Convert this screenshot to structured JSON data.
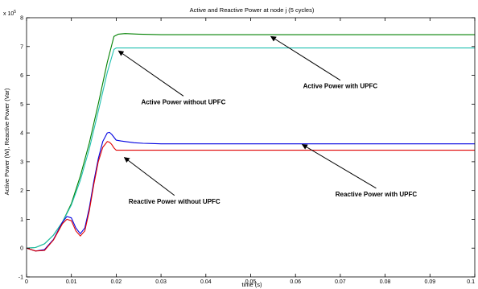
{
  "chart_data": {
    "type": "line",
    "title": "Active and Reactive Power at node j (5 cycles)",
    "xlabel": "time (s)",
    "ylabel": "Active Power (W), Reactive Power (Var)",
    "y_multiplier_label": "x 10",
    "y_multiplier_exp": "5",
    "xlim": [
      0,
      0.1
    ],
    "ylim": [
      -1,
      8
    ],
    "x_ticks": [
      0,
      0.01,
      0.02,
      0.03,
      0.04,
      0.05,
      0.06,
      0.07,
      0.08,
      0.09,
      0.1
    ],
    "x_tick_labels": [
      "0",
      "0.01",
      "0.02",
      "0.03",
      "0.04",
      "0.05",
      "0.06",
      "0.07",
      "0.08",
      "0.09",
      "0.1"
    ],
    "y_ticks": [
      -1,
      0,
      1,
      2,
      3,
      4,
      5,
      6,
      7,
      8
    ],
    "y_tick_labels": [
      "-1",
      "0",
      "1",
      "2",
      "3",
      "4",
      "5",
      "6",
      "7",
      "8"
    ],
    "grid": false,
    "series": [
      {
        "color": "#008000",
        "x": [
          0,
          0.002,
          0.004,
          0.006,
          0.008,
          0.01,
          0.012,
          0.014,
          0.016,
          0.018,
          0.0195,
          0.0205,
          0.022,
          0.025,
          0.03,
          0.04,
          0.06,
          0.08,
          0.1
        ],
        "y": [
          0,
          0.02,
          0.15,
          0.45,
          0.9,
          1.55,
          2.5,
          3.65,
          5.0,
          6.45,
          7.35,
          7.43,
          7.45,
          7.43,
          7.41,
          7.41,
          7.41,
          7.41,
          7.41
        ]
      },
      {
        "color": "#20C0B0",
        "x": [
          0,
          0.002,
          0.004,
          0.006,
          0.008,
          0.01,
          0.012,
          0.014,
          0.016,
          0.018,
          0.0195,
          0.02,
          0.03,
          0.05,
          0.07,
          0.1
        ],
        "y": [
          0,
          0.02,
          0.15,
          0.45,
          0.9,
          1.5,
          2.35,
          3.45,
          4.75,
          6.1,
          6.9,
          6.95,
          6.95,
          6.95,
          6.95,
          6.95
        ]
      },
      {
        "color": "#0000E0",
        "x": [
          0,
          0.002,
          0.004,
          0.006,
          0.008,
          0.009,
          0.01,
          0.011,
          0.012,
          0.013,
          0.014,
          0.015,
          0.016,
          0.017,
          0.018,
          0.0185,
          0.019,
          0.0195,
          0.02,
          0.021,
          0.022,
          0.024,
          0.026,
          0.028,
          0.03,
          0.04,
          0.06,
          0.08,
          0.1
        ],
        "y": [
          0,
          -0.1,
          -0.05,
          0.3,
          0.9,
          1.1,
          1.05,
          0.7,
          0.5,
          0.7,
          1.4,
          2.3,
          3.1,
          3.7,
          4.0,
          4.02,
          3.95,
          3.85,
          3.75,
          3.72,
          3.7,
          3.66,
          3.64,
          3.63,
          3.62,
          3.62,
          3.62,
          3.62,
          3.62
        ]
      },
      {
        "color": "#E00000",
        "x": [
          0,
          0.002,
          0.004,
          0.006,
          0.008,
          0.009,
          0.01,
          0.011,
          0.012,
          0.013,
          0.014,
          0.015,
          0.016,
          0.017,
          0.018,
          0.0185,
          0.019,
          0.0195,
          0.02,
          0.025,
          0.04,
          0.06,
          0.08,
          0.1
        ],
        "y": [
          0,
          -0.1,
          -0.08,
          0.28,
          0.85,
          1.0,
          0.95,
          0.6,
          0.42,
          0.6,
          1.3,
          2.2,
          3.0,
          3.5,
          3.7,
          3.68,
          3.6,
          3.48,
          3.4,
          3.4,
          3.4,
          3.4,
          3.4,
          3.4
        ]
      }
    ],
    "annotations": [
      {
        "text": "Active Power without UPFC",
        "x": 0.035,
        "y": 5.0,
        "arrow_to_x": 0.0205,
        "arrow_to_y": 6.85
      },
      {
        "text": "Active Power with UPFC",
        "x": 0.07,
        "y": 5.55,
        "arrow_to_x": 0.0545,
        "arrow_to_y": 7.35
      },
      {
        "text": "Reactive Power without UPFC",
        "x": 0.033,
        "y": 1.55,
        "arrow_to_x": 0.0218,
        "arrow_to_y": 3.15
      },
      {
        "text": "Reactive Power with UPFC",
        "x": 0.078,
        "y": 1.8,
        "arrow_to_x": 0.0615,
        "arrow_to_y": 3.6
      }
    ]
  }
}
